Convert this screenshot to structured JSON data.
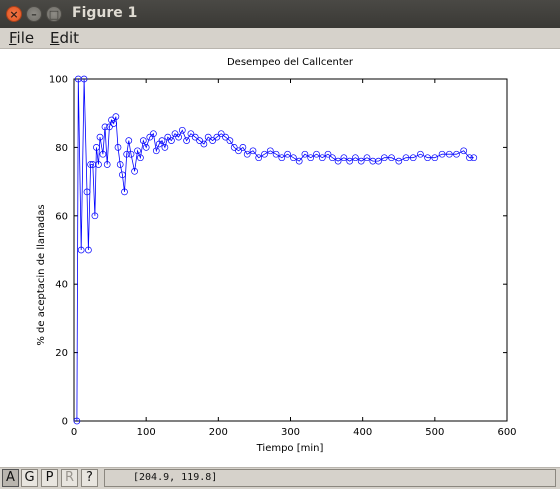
{
  "window": {
    "title": "Figure 1"
  },
  "menu": {
    "file": "File",
    "file_ul": "F",
    "file_rest": "ile",
    "edit": "Edit",
    "edit_ul": "E",
    "edit_rest": "dit"
  },
  "toolbar": {
    "buttons": [
      {
        "label": "A",
        "state": "pressed"
      },
      {
        "label": "G",
        "state": "normal"
      },
      {
        "label": "P",
        "state": "normal"
      },
      {
        "label": "R",
        "state": "disabled"
      },
      {
        "label": "?",
        "state": "normal"
      }
    ],
    "coords": "[204.9, 119.8]"
  },
  "chart_data": {
    "type": "line",
    "title": "Desempeo del Callcenter",
    "xlabel": "Tiempo [min]",
    "ylabel": "% de aceptacin de llamadas",
    "xlim": [
      0,
      600
    ],
    "ylim": [
      0,
      100
    ],
    "xticks": [
      0,
      100,
      200,
      300,
      400,
      500,
      600
    ],
    "yticks": [
      0,
      20,
      40,
      60,
      80,
      100
    ],
    "grid": false,
    "marker": "circle",
    "line_color": "#0000ff",
    "series": [
      {
        "x": [
          4,
          6,
          10,
          14,
          18,
          20,
          23,
          26,
          29,
          31,
          34,
          36,
          40,
          43,
          46,
          49,
          52,
          55,
          58,
          61,
          64,
          67,
          70,
          73,
          76,
          79,
          84,
          88,
          92,
          96,
          100,
          105,
          110,
          114,
          118,
          122,
          126,
          130,
          135,
          140,
          145,
          150,
          156,
          162,
          168,
          174,
          180,
          186,
          192,
          198,
          204,
          210,
          216,
          222,
          228,
          234,
          240,
          248,
          256,
          264,
          272,
          280,
          288,
          296,
          304,
          312,
          320,
          328,
          336,
          344,
          352,
          358,
          366,
          374,
          382,
          390,
          398,
          406,
          414,
          422,
          430,
          440,
          450,
          460,
          470,
          480,
          490,
          500,
          510,
          520,
          530,
          540,
          548,
          554
        ],
        "y": [
          0,
          100,
          50,
          100,
          67,
          50,
          75,
          75,
          60,
          80,
          75,
          83,
          78,
          86,
          75,
          86,
          88,
          87,
          89,
          80,
          75,
          72,
          67,
          78,
          82,
          78,
          73,
          79,
          77,
          82,
          80,
          83,
          84,
          79,
          81,
          82,
          80,
          83,
          82,
          84,
          83,
          85,
          82,
          84,
          83,
          82,
          81,
          83,
          82,
          83,
          84,
          83,
          82,
          80,
          79,
          80,
          78,
          79,
          77,
          78,
          79,
          78,
          77,
          78,
          77,
          76,
          78,
          77,
          78,
          77,
          78,
          77,
          76,
          77,
          76,
          77,
          76,
          77,
          76,
          76,
          77,
          77,
          76,
          77,
          77,
          78,
          77,
          77,
          78,
          78,
          78,
          79,
          77,
          77
        ]
      }
    ]
  }
}
